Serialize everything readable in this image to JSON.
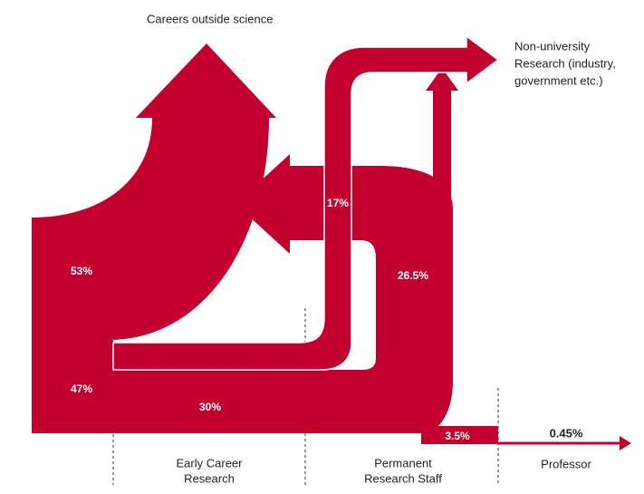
{
  "destinations": {
    "careers_outside": "Careers outside science",
    "non_university": [
      "Non-university",
      "Research (industry,",
      "government etc.)"
    ]
  },
  "stages": [
    [
      "Early Career",
      "Research"
    ],
    [
      "Permanent",
      "Research Staff"
    ],
    [
      "Professor"
    ]
  ],
  "flows": {
    "outside_early": "53%",
    "stay_early": "47%",
    "early_to_permanent": "30%",
    "early_to_non_university": "17%",
    "permanent_out": "26.5%",
    "permanent_to_professor": "3.5%",
    "professor": "0.45%"
  }
}
